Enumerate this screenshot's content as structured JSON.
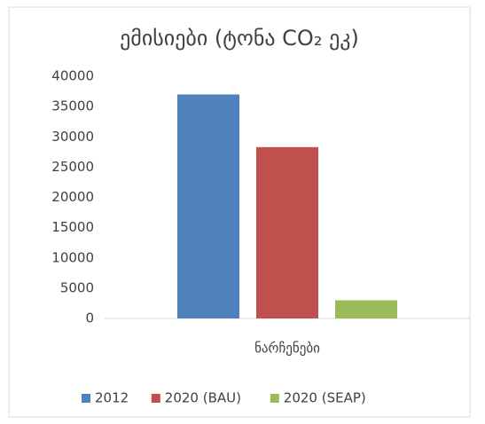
{
  "chart_data": {
    "type": "bar",
    "title": "ემისიები (ტონა CO₂ ეკ)",
    "categories": [
      "ნარჩენები"
    ],
    "series": [
      {
        "name": "2012",
        "color": "#4f81bd",
        "values": [
          37000
        ]
      },
      {
        "name": "2020 (BAU)",
        "color": "#c0504d",
        "values": [
          28300
        ]
      },
      {
        "name": "2020 (SEAP)",
        "color": "#9bbb59",
        "values": [
          3000
        ]
      }
    ],
    "ylim": [
      0,
      40000
    ],
    "yticks": [
      0,
      5000,
      10000,
      15000,
      20000,
      25000,
      30000,
      35000,
      40000
    ],
    "grid": false,
    "legend": "bottom"
  }
}
